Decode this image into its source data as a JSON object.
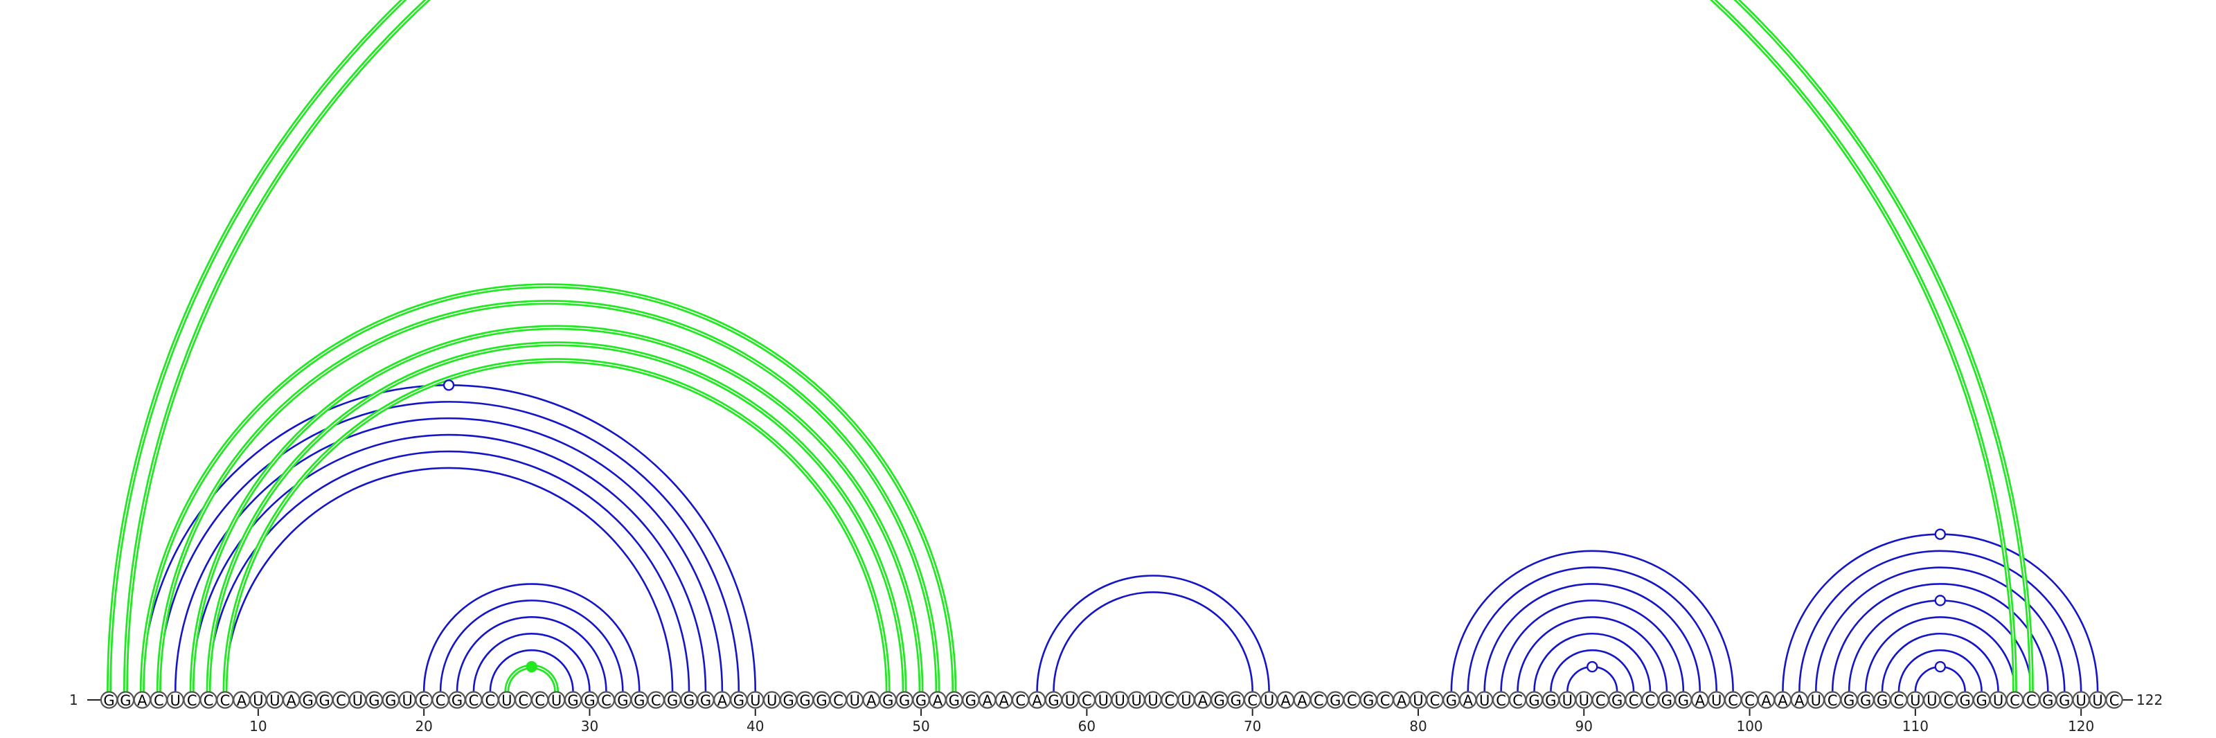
{
  "sequence": "GGACUCCCAUUAGGCUGGUCCGCCUCCUGGCGGCGGGAGUUGGGCUAGGGAGGAACAGUCUUUUCUAGGCUAACGCGCAUCGAUCCGGUUCGCCGGAUCCAAAUCGGGCUUCGGUCCGGUUC",
  "start_label": "1",
  "end_label": "122",
  "tick_labels": [
    "10",
    "20",
    "30",
    "40",
    "50",
    "60",
    "70",
    "80",
    "90",
    "100",
    "110",
    "120"
  ],
  "colors": {
    "blue_arc": "#1515c8",
    "green_arc": "#22e822",
    "nucleotide_stroke": "#555555"
  },
  "blue_helices": [
    {
      "i": 3,
      "j": 40,
      "n": 1
    },
    {
      "i": 4,
      "j": 39,
      "n": 1
    },
    {
      "i": 5,
      "j": 38,
      "n": 1
    },
    {
      "i": 6,
      "j": 37,
      "n": 1
    },
    {
      "i": 7,
      "j": 36,
      "n": 1
    },
    {
      "i": 8,
      "j": 35,
      "n": 1
    },
    {
      "i": 20,
      "j": 33,
      "n": 6
    },
    {
      "i": 57,
      "j": 71,
      "n": 2
    },
    {
      "i": 82,
      "j": 99,
      "n": 8
    },
    {
      "i": 102,
      "j": 121,
      "n": 9
    }
  ],
  "green_helices": [
    {
      "i": 1,
      "j": 117,
      "n": 2
    },
    {
      "i": 3,
      "j": 52,
      "n": 1
    },
    {
      "i": 4,
      "j": 51,
      "n": 1
    },
    {
      "i": 6,
      "j": 50,
      "n": 1
    },
    {
      "i": 7,
      "j": 49,
      "n": 1
    },
    {
      "i": 8,
      "j": 48,
      "n": 1
    },
    {
      "i": 25,
      "j": 28,
      "n": 1
    }
  ],
  "markers": [
    {
      "pos": 21.5,
      "arc_i": 3,
      "arc_j": 40,
      "color": "blue"
    },
    {
      "pos": 26.5,
      "arc_i": 25,
      "arc_j": 28,
      "color": "green"
    },
    {
      "pos": 90.5,
      "arc_i": 89,
      "arc_j": 92,
      "color": "blue"
    },
    {
      "pos": 111.5,
      "arc_i": 102,
      "arc_j": 121,
      "color": "blue"
    },
    {
      "pos": 111.5,
      "arc_i": 106,
      "arc_j": 117,
      "color": "blue"
    },
    {
      "pos": 111.5,
      "arc_i": 110,
      "arc_j": 113,
      "color": "blue"
    }
  ]
}
